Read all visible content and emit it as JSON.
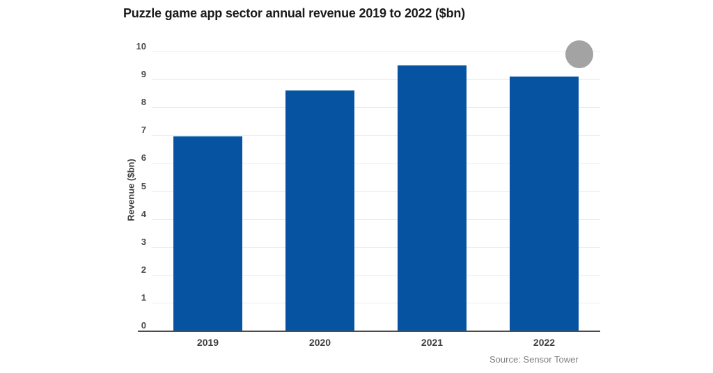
{
  "chart_data": {
    "type": "bar",
    "title": "Puzzle game app sector annual revenue 2019 to 2022 ($bn)",
    "categories": [
      "2019",
      "2020",
      "2021",
      "2022"
    ],
    "values": [
      6.95,
      8.6,
      9.5,
      9.1
    ],
    "xlabel": "",
    "ylabel": "Revenue ($bn)",
    "ylim": [
      0,
      10
    ],
    "ytick_step": 1,
    "grid": true,
    "legend": "none",
    "bar_color": "#0553a1",
    "axis_line_color": "#4d4d4d",
    "gridline_color": "#ececec",
    "decoration_circle_color": "#a3a3a3",
    "source": "Source: Sensor Tower"
  }
}
